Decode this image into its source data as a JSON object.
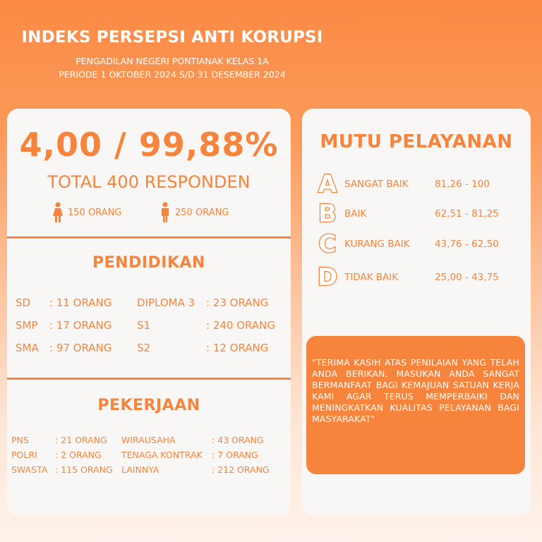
{
  "header": {
    "title": "INDEKS PERSEPSI ANTI KORUPSI",
    "subtitle1": "PENGADILAN NEGERI PONTIANAK KELAS 1A",
    "subtitle2": "PERIODE 1 OKTOBER 2024 S/D 31 DESEMBER 2024"
  },
  "summary": {
    "score": "4,00 / 99,88%",
    "total": "TOTAL 400 RESPONDEN",
    "female": "150 ORANG",
    "male": "250 ORANG",
    "female_icon": "female-person-icon",
    "male_icon": "male-person-icon"
  },
  "pendidikan": {
    "title": "PENDIDIKAN",
    "rows": [
      {
        "l1": "SD",
        "v1": ": 11 ORANG",
        "l2": "DIPLOMA 3",
        "v2": ": 23 ORANG"
      },
      {
        "l1": "SMP",
        "v1": ": 17 ORANG",
        "l2": "S1",
        "v2": ": 240 ORANG"
      },
      {
        "l1": "SMA",
        "v1": ": 97 ORANG",
        "l2": "S2",
        "v2": ": 12 ORANG"
      }
    ]
  },
  "pekerjaan": {
    "title": "PEKERJAAN",
    "rows": [
      {
        "l1": "PNS",
        "v1": ": 21 ORANG",
        "l2": "WIRAUSAHA",
        "v2": ": 43 ORANG"
      },
      {
        "l1": "POLRI",
        "v1": ": 2 ORANG",
        "l2": "TENAGA KONTRAK",
        "v2": ": 7 ORANG"
      },
      {
        "l1": "SWASTA",
        "v1": ": 115 ORANG",
        "l2": "LAINNYA",
        "v2": ": 212 ORANG"
      }
    ]
  },
  "mutu": {
    "title": "MUTU PELAYANAN",
    "grades": [
      {
        "letter": "A",
        "label": "SANGAT BAIK",
        "range": "81,26 - 100"
      },
      {
        "letter": "B",
        "label": "BAIK",
        "range": "62,51 - 81,25"
      },
      {
        "letter": "C",
        "label": "KURANG BAIK",
        "range": "43,76 - 62,50"
      },
      {
        "letter": "D",
        "label": "TIDAK BAIK",
        "range": "25,00 - 43,75"
      }
    ]
  },
  "quote": "\"TERIMA KASIH ATAS PENILAIAN YANG TELAH ANDA BERIKAN, MASUKAN ANDA SANGAT BERMANFAAT BAGI KEMAJUAN SATUAN KERJA KAMI AGAR TERUS MEMPERBAIKI DAN MENINGKATKAN KUALITAS PELAYANAN BAGI MASYARAKAT\"",
  "colors": {
    "accent": "#f7843c",
    "card": "#f9f7f5",
    "text_on_accent": "#ffffff"
  }
}
